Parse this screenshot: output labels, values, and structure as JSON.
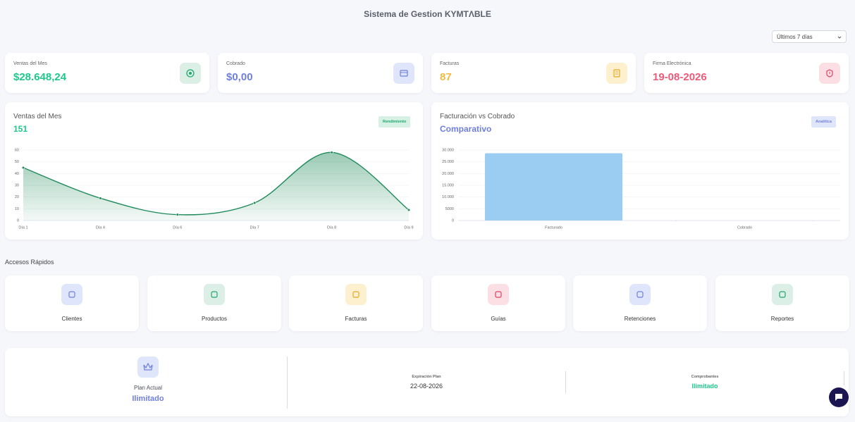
{
  "header": {
    "title": "Sistema de Gestion KYMTΛBLE",
    "range_select": "Últimos 7 días"
  },
  "stats": [
    {
      "label": "Ventas del Mes",
      "value": "$28.648,24"
    },
    {
      "label": "Cobrado",
      "value": "$0,00"
    },
    {
      "label": "Facturas",
      "value": "87"
    },
    {
      "label": "Firma Electrónica",
      "value": "19-08-2026"
    }
  ],
  "chart_data": [
    {
      "type": "line",
      "title": "Ventas del Mes",
      "subtitle": "151",
      "badge": "Rendimiento",
      "color": "#1e8a5a",
      "categories": [
        "Día 1",
        "Día 4",
        "Día 6",
        "Día 7",
        "Día 8",
        "Día 9"
      ],
      "values": [
        45,
        19,
        5,
        15,
        58,
        9
      ],
      "ylim": [
        0,
        60
      ],
      "yticks": [
        0,
        10,
        20,
        30,
        40,
        50,
        60
      ],
      "grid": true
    },
    {
      "type": "bar",
      "title": "Facturación vs Cobrado",
      "subtitle": "Comparativo",
      "badge": "Analítica",
      "color": "#9bcdf3",
      "categories": [
        "Facturado",
        "Cobrado"
      ],
      "values": [
        28648.24,
        0
      ],
      "ylim": [
        0,
        30000
      ],
      "yticks": [
        0,
        5000,
        {
          "value": 10000,
          "label": "10.000"
        },
        {
          "value": 15000,
          "label": "15.000"
        },
        {
          "value": 20000,
          "label": "20.000"
        },
        {
          "value": 25000,
          "label": "25.000"
        },
        {
          "value": 30000,
          "label": "30.000"
        }
      ],
      "grid": true
    }
  ],
  "quick_access": {
    "title": "Accesos Rápidos",
    "items": [
      "Clientes",
      "Productos",
      "Facturas",
      "Guías",
      "Retenciones",
      "Reportes"
    ]
  },
  "plan": {
    "current_label": "Plan Actual",
    "current_value": "Ilimitado",
    "expiry_label": "Expiración Plan",
    "expiry_value": "22-08-2026",
    "vouchers_label": "Comprobantes",
    "vouchers_value": "Ilimitado"
  }
}
